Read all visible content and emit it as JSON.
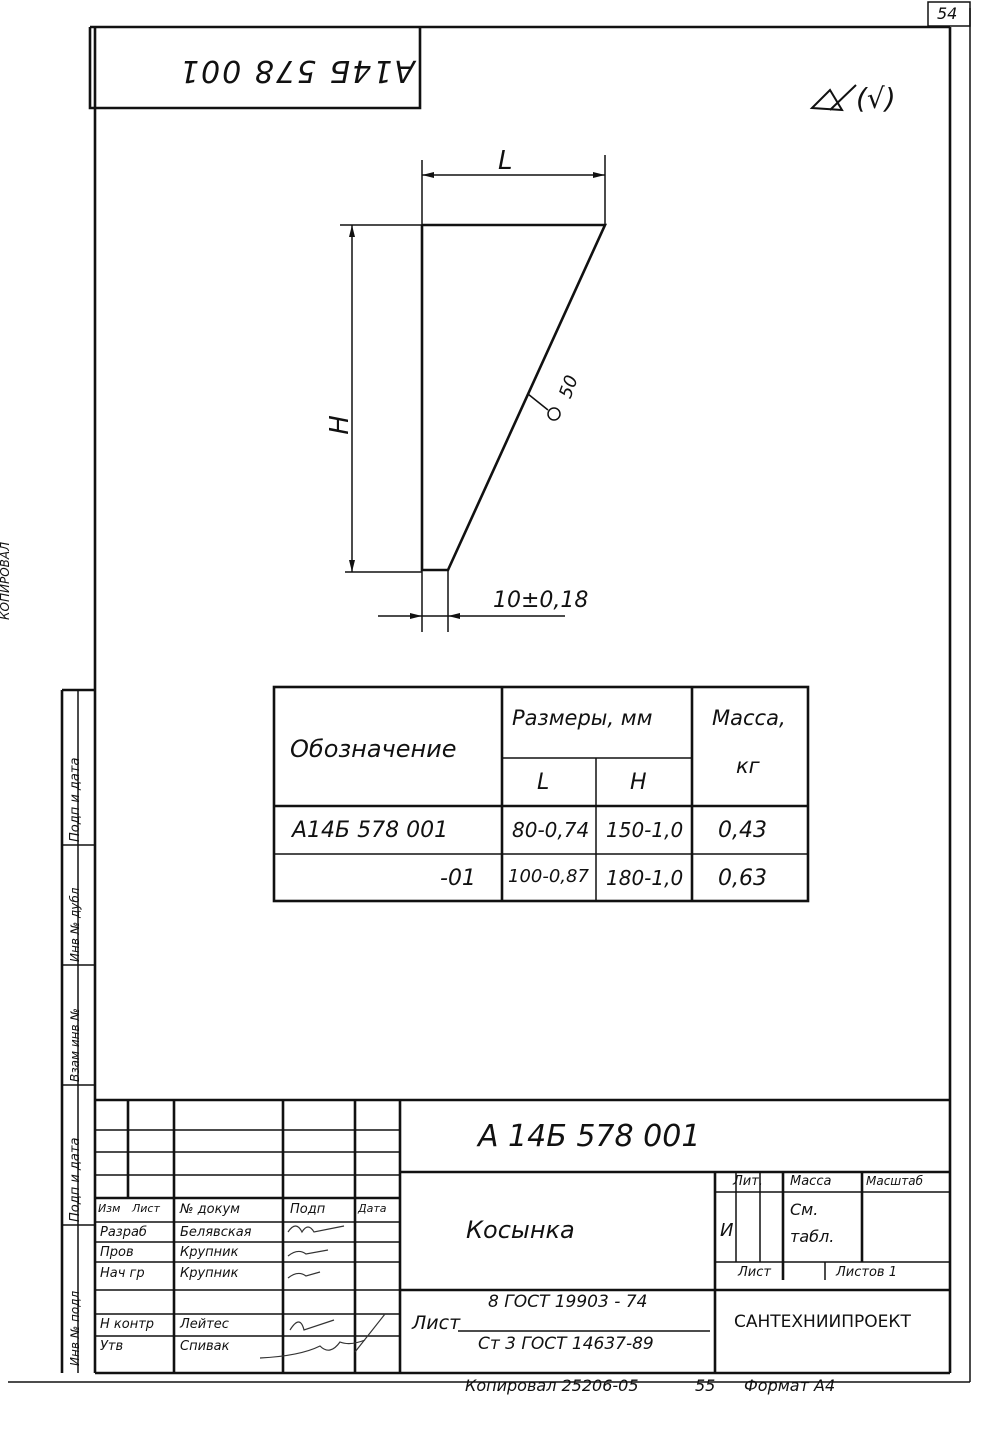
{
  "sheet_number": "54",
  "left_margin_fragment": "КОПИРОВАЛ",
  "top_label_mirrored": "А14Б 578 001",
  "roughness_symbol": "∀(√)",
  "drawing": {
    "dim_L": "L",
    "dim_H": "H",
    "weld_mark": "50",
    "dim_thickness": "10±0,18"
  },
  "table": {
    "header_designation": "Обозначение",
    "header_sizes": "Размеры, мм",
    "header_mass": "Масса,",
    "header_mass_unit": "кг",
    "sub_L": "L",
    "sub_H": "H",
    "rows": [
      {
        "designation": "А14Б 578 001",
        "L": "80-0,74",
        "H": "150-1,0",
        "mass": "0,43"
      },
      {
        "designation": "-01",
        "L": "100-0,87",
        "H": "180-1,0",
        "mass": "0,63"
      }
    ]
  },
  "side_stamp": {
    "podp_i_data_1": "Подп и дата",
    "inv_dubl": "Инв № дубл",
    "vzam_inv": "Взам инв №",
    "podp_i_data_2": "Подп и дата",
    "inv_podl": "Инв № подл"
  },
  "title_block": {
    "doc_number": "А 14Б 578 001",
    "title": "Косынка",
    "material_line1": "8 ГОСТ 19903 - 74",
    "material_line2": "Ст 3 ГОСТ 14637-89",
    "material_prefix": "Лист",
    "col_izm": "Изм",
    "col_list": "Лист",
    "col_doc": "№ докум",
    "col_podp": "Подп",
    "col_data": "Дата",
    "roles": [
      "Разраб",
      "Пров",
      "Нач гр",
      "",
      "Н контр",
      "Утв"
    ],
    "names": [
      "Белявская",
      "Крупник",
      "Крупник",
      "",
      "Лейтес",
      "Спивак"
    ],
    "lit_label": "Лит.",
    "mass_label": "Масса",
    "scale_label": "Масштаб",
    "lit_value": "И",
    "mass_value_1": "См.",
    "mass_value_2": "табл.",
    "sheet_label": "Лист",
    "sheets_label": "Листов 1",
    "organization": "САНТЕХНИИПРОЕКТ"
  },
  "footer": {
    "copied": "Копировал 25206-05",
    "page": "55",
    "format": "Формат А4"
  }
}
